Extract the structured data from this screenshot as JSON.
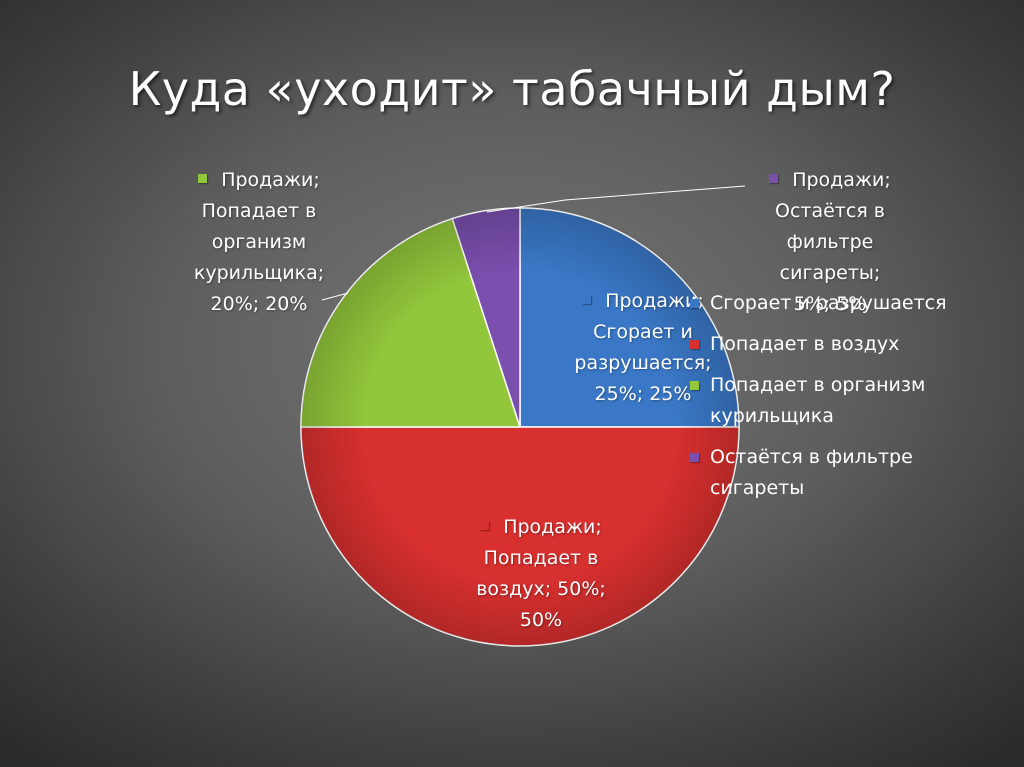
{
  "slide": {
    "title": "Куда «уходит» табачный дым?"
  },
  "chart_data": {
    "type": "pie",
    "title": "",
    "series_name": "Продажи",
    "slices": [
      {
        "label": "Сгорает и разрушается",
        "value": 25,
        "color": "#3a78c7",
        "data_label": [
          "Продажи;",
          "Сгорает и",
          "разрушается;",
          "25%; 25%"
        ]
      },
      {
        "label": "Попадает в воздух",
        "value": 50,
        "color": "#d8302f",
        "data_label": [
          "Продажи;",
          "Попадает в",
          "воздух; 50%;",
          "50%"
        ]
      },
      {
        "label": "Попадает в организм курильщика",
        "value": 20,
        "color": "#92c73b",
        "data_label": [
          "Продажи;",
          "Попадает в",
          "организм",
          "курильщика;",
          "20%; 20%"
        ]
      },
      {
        "label": "Остаётся в фильтре сигареты",
        "value": 5,
        "color": "#7a4fae",
        "data_label": [
          "Продажи;",
          "Остаётся в",
          "фильтре",
          "сигареты;",
          "5%; 5%"
        ]
      }
    ],
    "legend": {
      "position": "right",
      "items": [
        {
          "text": "Сгорает и разрушается",
          "color": "#3a78c7"
        },
        {
          "text": "Попадает в воздух",
          "color": "#d8302f"
        },
        {
          "text": "Попадает в организм курильщика",
          "color": "#92c73b"
        },
        {
          "text": "Остаётся в фильтре сигареты",
          "color": "#7a4fae"
        }
      ]
    }
  }
}
